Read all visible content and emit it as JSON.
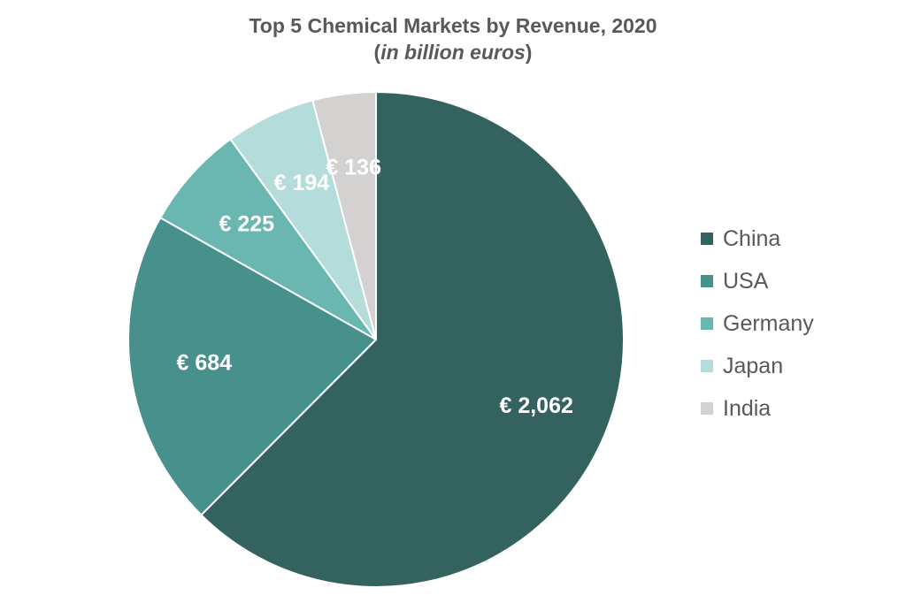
{
  "chart_data": {
    "type": "pie",
    "title": "Top 5 Chemical Markets by Revenue, 2020",
    "subtitle": {
      "open": "(",
      "unit": "in billion euros",
      "close": ")"
    },
    "slices": [
      {
        "name": "China",
        "value": 2062,
        "label": "€ 2,062",
        "color": "#33625F"
      },
      {
        "name": "USA",
        "value": 684,
        "label": "€ 684",
        "color": "#48908C"
      },
      {
        "name": "Germany",
        "value": 225,
        "label": "€ 225",
        "color": "#6AB6B1"
      },
      {
        "name": "Japan",
        "value": 194,
        "label": "€ 194",
        "color": "#B3DCDA"
      },
      {
        "name": "India",
        "value": 136,
        "label": "€ 136",
        "color": "#D4D1D1"
      }
    ],
    "start_angle": "12 o'clock",
    "direction": "clockwise",
    "legend_position": "right"
  }
}
